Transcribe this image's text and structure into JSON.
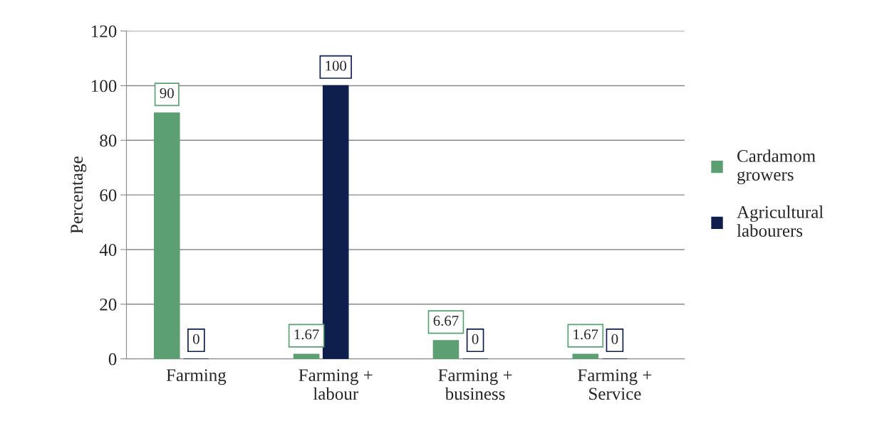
{
  "chart_data": {
    "type": "bar",
    "ylabel": "Percentage",
    "categories": [
      "Farming",
      "Farming +\nlabour",
      "Farming +\nbusiness",
      "Farming +\nService"
    ],
    "series": [
      {
        "name": "Cardamom\ngrowers",
        "color": "#5b9f72",
        "values": [
          90,
          1.67,
          6.67,
          1.67
        ]
      },
      {
        "name": "Agricultural\nlabourers",
        "color": "#0f1f4d",
        "values": [
          0,
          100,
          0,
          0
        ]
      }
    ],
    "ylim": [
      0,
      120
    ],
    "yticks": [
      0,
      20,
      40,
      60,
      80,
      100,
      120
    ],
    "grid": "y",
    "legend": "right",
    "data_labels": true
  }
}
